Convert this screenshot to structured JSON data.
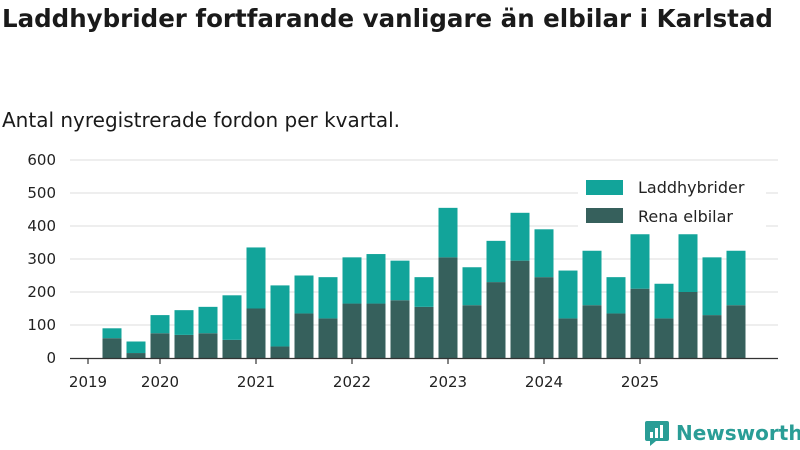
{
  "title": "Laddhybrider fortfarande vanligare än elbilar i Karlstad",
  "subtitle": "Antal nyregistrerade fordon per kvartal.",
  "logo_text": "Newsworthy",
  "colors": {
    "hybrid": "#12a49a",
    "electric": "#36605c",
    "grid": "#dcdcdc",
    "axis": "#333333"
  },
  "chart_data": {
    "type": "bar",
    "stacked": true,
    "categories": [
      "2019 Q2",
      "2019 Q3",
      "2019 Q4",
      "2020 Q1",
      "2020 Q2",
      "2020 Q3",
      "2020 Q4",
      "2021 Q1",
      "2021 Q2",
      "2021 Q3",
      "2021 Q4",
      "2022 Q1",
      "2022 Q2",
      "2022 Q3",
      "2022 Q4",
      "2023 Q1",
      "2023 Q2",
      "2023 Q3",
      "2023 Q4",
      "2024 Q1",
      "2024 Q2",
      "2024 Q3",
      "2024 Q4",
      "2025 Q1",
      "2025 Q2",
      "2025 Q3",
      "2025 Q4"
    ],
    "series": [
      {
        "name": "Rena elbilar",
        "values": [
          60,
          15,
          75,
          70,
          75,
          55,
          150,
          35,
          135,
          120,
          165,
          165,
          175,
          155,
          305,
          160,
          230,
          295,
          245,
          120,
          160,
          135,
          210,
          120,
          200,
          130,
          160
        ]
      },
      {
        "name": "Laddhybrider",
        "values": [
          30,
          35,
          55,
          75,
          80,
          135,
          185,
          185,
          115,
          125,
          140,
          150,
          120,
          90,
          150,
          115,
          125,
          145,
          145,
          145,
          165,
          110,
          165,
          105,
          175,
          175,
          165
        ]
      }
    ],
    "xticks": [
      {
        "label": "2019",
        "index": 0
      },
      {
        "label": "2020",
        "index": 3
      },
      {
        "label": "2021",
        "index": 7
      },
      {
        "label": "2022",
        "index": 11
      },
      {
        "label": "2023",
        "index": 15
      },
      {
        "label": "2024",
        "index": 19
      },
      {
        "label": "2025",
        "index": 23
      }
    ],
    "yticks": [
      0,
      100,
      200,
      300,
      400,
      500,
      600
    ],
    "ylim": [
      0,
      600
    ],
    "xlabel": "",
    "ylabel": "",
    "legend": [
      "Laddhybrider",
      "Rena elbilar"
    ],
    "legend_position": "top-right",
    "grid": true
  }
}
